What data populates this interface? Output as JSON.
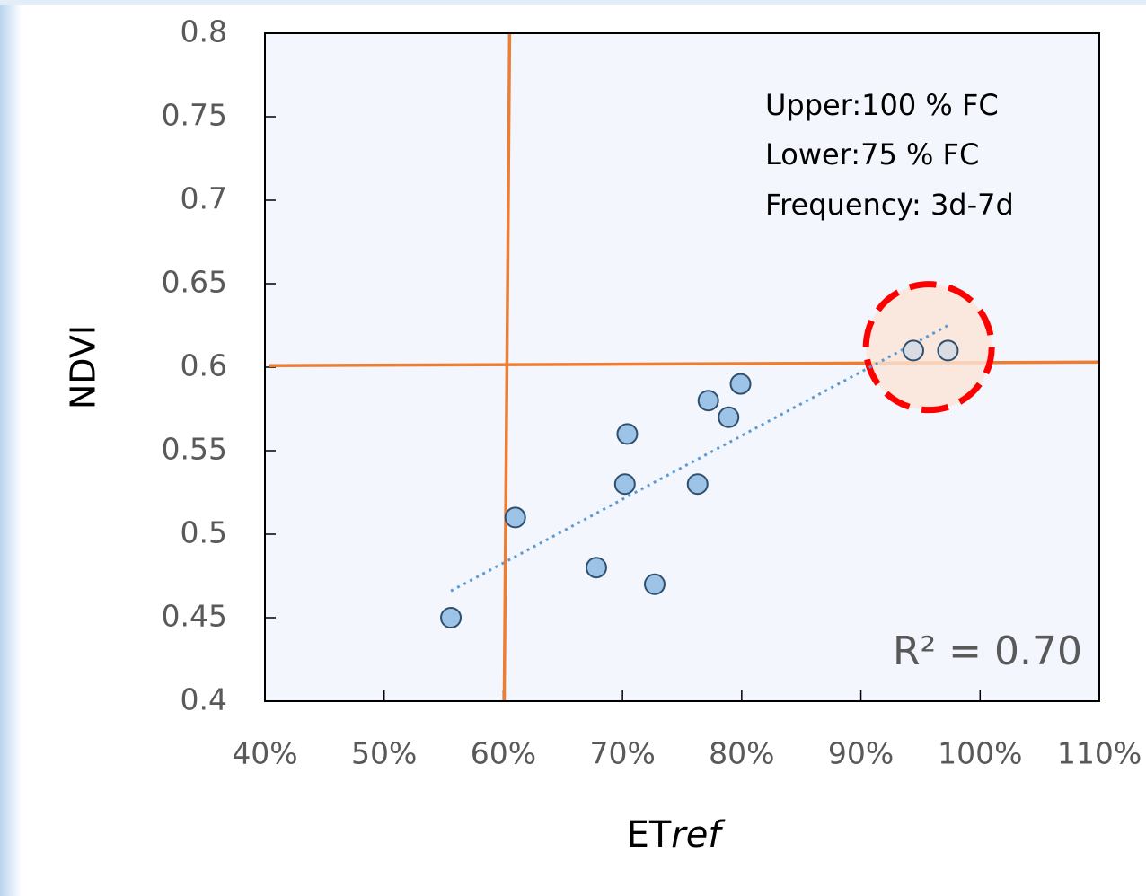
{
  "chart_data": {
    "type": "scatter",
    "xlabel": [
      "ET",
      "ref"
    ],
    "ylabel": "NDVI",
    "x": [
      55.6,
      61.0,
      67.8,
      72.7,
      70.2,
      70.4,
      76.3,
      77.2,
      78.9,
      79.9,
      94.4,
      97.3
    ],
    "y": [
      0.45,
      0.51,
      0.48,
      0.47,
      0.53,
      0.56,
      0.53,
      0.58,
      0.57,
      0.59,
      0.61,
      0.61
    ],
    "point_colors": [
      "#9dc3e6",
      "#9dc3e6",
      "#9dc3e6",
      "#9dc3e6",
      "#9dc3e6",
      "#9dc3e6",
      "#9dc3e6",
      "#9dc3e6",
      "#9dc3e6",
      "#9dc3e6",
      "#d9dde3",
      "#d9dde3"
    ],
    "xlim": [
      40,
      110
    ],
    "xticks": [
      {
        "value": 40,
        "label": "40%"
      },
      {
        "value": 50,
        "label": "50%"
      },
      {
        "value": 60,
        "label": "60%"
      },
      {
        "value": 70,
        "label": "70%"
      },
      {
        "value": 80,
        "label": "80%"
      },
      {
        "value": 90,
        "label": "90%"
      },
      {
        "value": 100,
        "label": "100%"
      },
      {
        "value": 110,
        "label": "110%"
      }
    ],
    "ylim": [
      0.4,
      0.8
    ],
    "yticks": [
      0.4,
      0.45,
      0.5,
      0.55,
      0.6,
      0.65,
      0.7,
      0.75,
      0.8
    ],
    "trendline": {
      "x": [
        55.6,
        97.3
      ],
      "y": [
        0.466,
        0.625
      ],
      "color": "#5b9bd5"
    },
    "reference_lines": {
      "x": 60.3,
      "y": 0.602,
      "color": "#ed7d31"
    },
    "highlight": {
      "x": 95.7,
      "y": 0.612,
      "color": "#ff0000"
    },
    "annotations": [
      "Upper:100 % FC",
      "Lower:75 % FC",
      "Frequency: 3d-7d"
    ],
    "r2_label": "R² = 0.70"
  }
}
